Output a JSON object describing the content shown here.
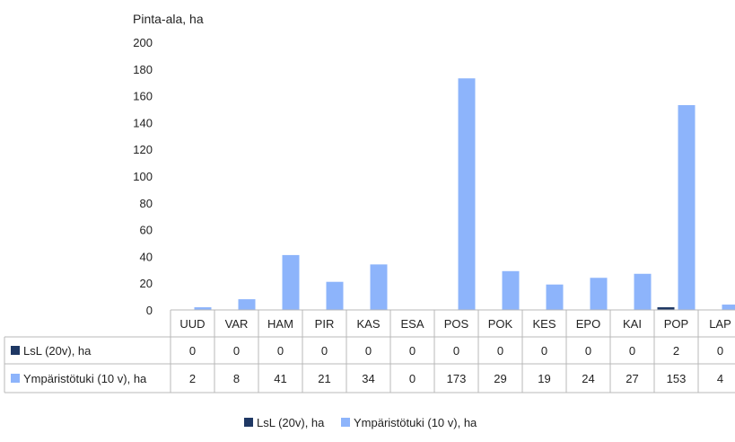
{
  "chart_data": {
    "type": "bar",
    "ylabel": "Pinta-ala, ha",
    "ylim": [
      0,
      200
    ],
    "yticks": [
      0,
      20,
      40,
      60,
      80,
      100,
      120,
      140,
      160,
      180,
      200
    ],
    "grid": false,
    "legend": "bottom",
    "categories": [
      "UUD",
      "VAR",
      "HAM",
      "PIR",
      "KAS",
      "ESA",
      "POS",
      "POK",
      "KES",
      "EPO",
      "KAI",
      "POP",
      "LAP"
    ],
    "series": [
      {
        "name": "LsL (20v), ha",
        "color": "#1f3864",
        "values": [
          0,
          0,
          0,
          0,
          0,
          0,
          0,
          0,
          0,
          0,
          0,
          2,
          0
        ]
      },
      {
        "name": "Ympäristötuki (10 v), ha",
        "color": "#8db4fb",
        "values": [
          2,
          8,
          41,
          21,
          34,
          0,
          173,
          29,
          19,
          24,
          27,
          153,
          4
        ]
      }
    ]
  }
}
